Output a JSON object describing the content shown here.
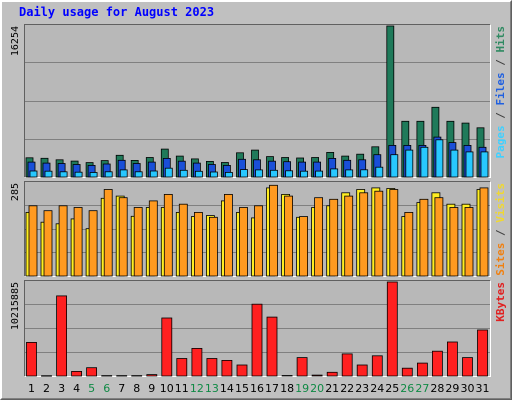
{
  "chart_data": {
    "type": "bar",
    "title": "Daily usage for August 2023",
    "categories": [
      "1",
      "2",
      "3",
      "4",
      "5",
      "6",
      "7",
      "8",
      "9",
      "10",
      "11",
      "12",
      "13",
      "14",
      "15",
      "16",
      "17",
      "18",
      "19",
      "20",
      "21",
      "22",
      "23",
      "24",
      "25",
      "26",
      "27",
      "28",
      "29",
      "30",
      "31"
    ],
    "weekend_days": [
      "5",
      "6",
      "12",
      "13",
      "19",
      "20",
      "26",
      "27"
    ],
    "panels": [
      {
        "id": "hits",
        "ymax_label": "16254",
        "ymax": 16254,
        "side_labels": [
          {
            "text": "Pages",
            "color": "#3fd0ff"
          },
          {
            "text": " / ",
            "color": "#404040"
          },
          {
            "text": "Files",
            "color": "#2060e0"
          },
          {
            "text": " / ",
            "color": "#404040"
          },
          {
            "text": "Hits",
            "color": "#308a62"
          }
        ],
        "series": [
          {
            "name": "Hits",
            "color": "#1f7a5a",
            "values": [
              2070,
              2010,
              1850,
              1710,
              1550,
              1770,
              2340,
              1790,
              2100,
              3000,
              2250,
              1950,
              1680,
              1560,
              2600,
              2900,
              2200,
              2100,
              2050,
              2100,
              2650,
              2250,
              2450,
              3250,
              16254,
              6000,
              6000,
              7500,
              6000,
              5800,
              5300
            ]
          },
          {
            "name": "Files",
            "color": "#1a4fd8",
            "values": [
              1600,
              1500,
              1450,
              1350,
              1250,
              1400,
              1800,
              1450,
              1600,
              2000,
              1700,
              1500,
              1350,
              1250,
              1900,
              1850,
              1700,
              1650,
              1600,
              1600,
              2000,
              1800,
              1850,
              2400,
              3400,
              3400,
              3400,
              4300,
              3700,
              3400,
              3200
            ]
          },
          {
            "name": "Pages",
            "color": "#28c8ff",
            "values": [
              650,
              620,
              560,
              520,
              480,
              560,
              760,
              560,
              650,
              950,
              720,
              610,
              540,
              500,
              800,
              760,
              720,
              670,
              620,
              640,
              870,
              760,
              780,
              1050,
              2400,
              2900,
              3200,
              4000,
              2900,
              2700,
              2700
            ]
          }
        ]
      },
      {
        "id": "visits",
        "ymax_label": "285",
        "ymax": 285,
        "side_labels": [
          {
            "text": "Sites",
            "color": "#f08010"
          },
          {
            "text": " / ",
            "color": "#404040"
          },
          {
            "text": "Visits",
            "color": "#f0d830"
          }
        ],
        "series": [
          {
            "name": "Visits",
            "color": "#ffee22",
            "values": [
              195,
              165,
              160,
              175,
              145,
              238,
              245,
              183,
              210,
              210,
              195,
              182,
              185,
              230,
              195,
              178,
              270,
              250,
              180,
              210,
              215,
              255,
              265,
              270,
              268,
              182,
              225,
              255,
              220,
              220,
              265
            ]
          },
          {
            "name": "Sites",
            "color": "#ff9a20",
            "values": [
              215,
              200,
              215,
              210,
              200,
              265,
              240,
              210,
              230,
              250,
              220,
              195,
              180,
              250,
              210,
              215,
              278,
              245,
              182,
              240,
              235,
              245,
              255,
              260,
              265,
              195,
              235,
              240,
              210,
              210,
              270
            ]
          }
        ]
      },
      {
        "id": "kbytes",
        "ymax_label": "10215885",
        "ymax": 10215885,
        "side_labels": [
          {
            "text": "KBytes",
            "color": "#e02020"
          }
        ],
        "series": [
          {
            "name": "KBytes",
            "color": "#ff2020",
            "values": [
              3650000,
              30000,
              8700000,
              500000,
              900000,
              40000,
              40000,
              40000,
              150000,
              6300000,
              1900000,
              3000000,
              1900000,
              1700000,
              1200000,
              7800000,
              6400000,
              50000,
              2000000,
              100000,
              400000,
              2400000,
              1200000,
              2200000,
              10215885,
              850000,
              1400000,
              2700000,
              3700000,
              2000000,
              5000000
            ]
          }
        ]
      }
    ],
    "colors": {
      "background": "#c0c0c0",
      "panel": "#b8b8b8",
      "grid": "#808080",
      "title": "#0000ff",
      "weekday_label": "#000000",
      "weekend_label": "#108a45"
    }
  }
}
